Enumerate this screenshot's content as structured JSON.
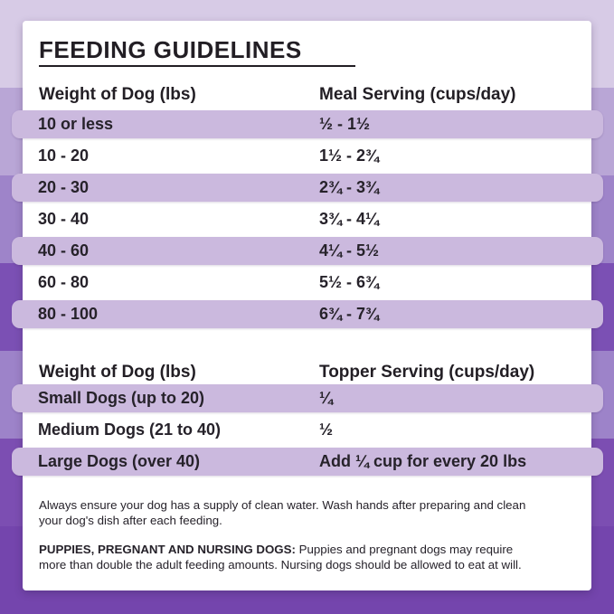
{
  "title": "FEEDING GUIDELINES",
  "meal_table": {
    "headers": {
      "col1": "Weight of Dog (lbs)",
      "col2": "Meal Serving (cups/day)"
    },
    "rows": [
      {
        "weight": "10 or less",
        "serving": "½ - 1½"
      },
      {
        "weight": "10 - 20",
        "serving": "1½ - 2¾"
      },
      {
        "weight": "20 - 30",
        "serving": "2¾ - 3¾"
      },
      {
        "weight": "30 - 40",
        "serving": "3¾ - 4¼"
      },
      {
        "weight": "40 - 60",
        "serving": "4¼ - 5½"
      },
      {
        "weight": "60 - 80",
        "serving": "5½ - 6¾"
      },
      {
        "weight": "80 - 100",
        "serving": "6¾ - 7¾"
      }
    ]
  },
  "topper_table": {
    "headers": {
      "col1": "Weight of Dog (lbs)",
      "col2": "Topper Serving (cups/day)"
    },
    "rows": [
      {
        "weight": "Small Dogs (up to 20)",
        "serving": "¼"
      },
      {
        "weight": "Medium Dogs (21 to 40)",
        "serving": "½"
      },
      {
        "weight": "Large Dogs (over 40)",
        "serving": "Add ¼ cup for every 20 lbs"
      }
    ]
  },
  "footnotes": {
    "water_line1": "Always ensure your dog has a supply of clean water. Wash hands after preparing and clean",
    "water_line2": "your dog's dish after each feeding.",
    "puppies_bold": "PUPPIES, PREGNANT AND NURSING DOGS:",
    "puppies_line1_rest": " Puppies and pregnant dogs may require",
    "puppies_line2": "more than double the adult feeding amounts. Nursing dogs should be allowed to eat at will."
  },
  "colors": {
    "text": "#26222a",
    "card_background": "#ffffff",
    "row_highlight": "#cbb9de",
    "background_bands": [
      "#d7cbe6",
      "#b9a6d6",
      "#9e84c9",
      "#7b50b4",
      "#9d83c9",
      "#7c4eb2",
      "#7445ad"
    ]
  }
}
